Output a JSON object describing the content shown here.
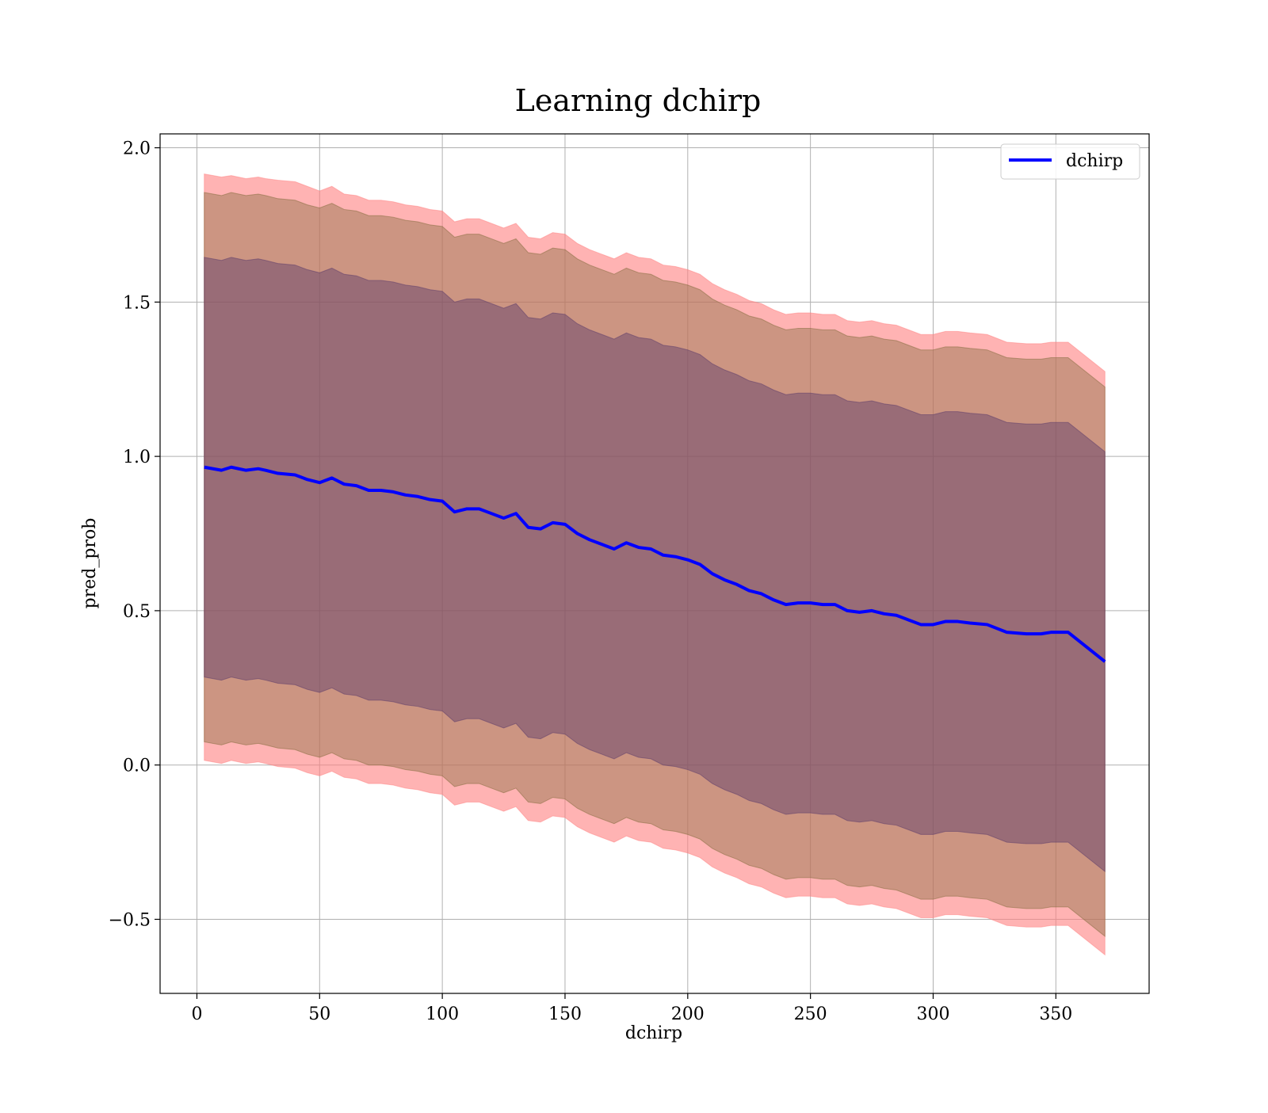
{
  "chart_data": {
    "type": "line",
    "title": "Learning dchirp",
    "xlabel": "dchirp",
    "ylabel": "pred_prob",
    "xlim": [
      -15,
      388
    ],
    "ylim": [
      -0.74,
      2.045
    ],
    "x_ticks": [
      0,
      50,
      100,
      150,
      200,
      250,
      300,
      350
    ],
    "x_tick_labels": [
      "0",
      "50",
      "100",
      "150",
      "200",
      "250",
      "300",
      "350"
    ],
    "y_ticks": [
      -0.5,
      0.0,
      0.5,
      1.0,
      1.5,
      2.0
    ],
    "y_tick_labels": [
      "−0.5",
      "0.0",
      "0.5",
      "1.0",
      "1.5",
      "2.0"
    ],
    "grid": true,
    "legend_position": "top-right",
    "series": [
      {
        "name": "dchirp",
        "color": "#0000ff",
        "x": [
          3,
          10,
          14,
          20,
          25,
          28,
          33,
          40,
          45,
          50,
          55,
          60,
          65,
          70,
          75,
          80,
          85,
          90,
          95,
          100,
          105,
          110,
          115,
          120,
          125,
          130,
          135,
          140,
          145,
          150,
          155,
          160,
          165,
          170,
          175,
          180,
          185,
          190,
          195,
          200,
          205,
          210,
          215,
          220,
          225,
          230,
          235,
          240,
          245,
          250,
          255,
          260,
          265,
          270,
          275,
          280,
          285,
          290,
          295,
          300,
          305,
          310,
          315,
          322,
          330,
          338,
          344,
          348,
          355,
          370
        ],
        "y": [
          0.965,
          0.955,
          0.965,
          0.955,
          0.96,
          0.955,
          0.945,
          0.94,
          0.925,
          0.915,
          0.93,
          0.91,
          0.905,
          0.89,
          0.89,
          0.885,
          0.875,
          0.87,
          0.86,
          0.855,
          0.82,
          0.83,
          0.83,
          0.815,
          0.8,
          0.815,
          0.77,
          0.765,
          0.785,
          0.78,
          0.75,
          0.73,
          0.715,
          0.7,
          0.72,
          0.705,
          0.7,
          0.68,
          0.675,
          0.665,
          0.65,
          0.62,
          0.6,
          0.585,
          0.565,
          0.555,
          0.535,
          0.52,
          0.525,
          0.525,
          0.52,
          0.52,
          0.5,
          0.495,
          0.5,
          0.49,
          0.485,
          0.47,
          0.455,
          0.455,
          0.465,
          0.465,
          0.46,
          0.455,
          0.43,
          0.425,
          0.425,
          0.43,
          0.43,
          0.335
        ]
      }
    ],
    "bands": [
      {
        "color": "#ff8080",
        "alpha": 0.6,
        "upper": [
          1.915,
          1.905,
          1.91,
          1.9,
          1.905,
          1.9,
          1.895,
          1.89,
          1.875,
          1.86,
          1.875,
          1.85,
          1.845,
          1.83,
          1.83,
          1.825,
          1.815,
          1.81,
          1.8,
          1.795,
          1.76,
          1.77,
          1.77,
          1.755,
          1.74,
          1.755,
          1.71,
          1.705,
          1.725,
          1.72,
          1.69,
          1.67,
          1.655,
          1.64,
          1.66,
          1.645,
          1.64,
          1.62,
          1.615,
          1.605,
          1.59,
          1.56,
          1.54,
          1.525,
          1.505,
          1.495,
          1.475,
          1.46,
          1.465,
          1.465,
          1.46,
          1.46,
          1.44,
          1.435,
          1.44,
          1.43,
          1.425,
          1.41,
          1.395,
          1.395,
          1.405,
          1.405,
          1.4,
          1.395,
          1.37,
          1.365,
          1.365,
          1.37,
          1.37,
          1.275
        ],
        "lower": [
          0.015,
          0.005,
          0.015,
          0.005,
          0.01,
          0.005,
          -0.005,
          -0.01,
          -0.025,
          -0.035,
          -0.02,
          -0.04,
          -0.045,
          -0.06,
          -0.06,
          -0.065,
          -0.075,
          -0.08,
          -0.09,
          -0.095,
          -0.13,
          -0.12,
          -0.12,
          -0.135,
          -0.15,
          -0.135,
          -0.18,
          -0.185,
          -0.165,
          -0.17,
          -0.2,
          -0.22,
          -0.235,
          -0.25,
          -0.23,
          -0.245,
          -0.25,
          -0.27,
          -0.275,
          -0.285,
          -0.3,
          -0.33,
          -0.35,
          -0.365,
          -0.385,
          -0.395,
          -0.415,
          -0.43,
          -0.425,
          -0.425,
          -0.43,
          -0.43,
          -0.45,
          -0.455,
          -0.45,
          -0.46,
          -0.465,
          -0.48,
          -0.495,
          -0.495,
          -0.485,
          -0.485,
          -0.49,
          -0.495,
          -0.52,
          -0.525,
          -0.525,
          -0.52,
          -0.52,
          -0.615
        ]
      },
      {
        "color": "#7f6a3a",
        "alpha": 0.4,
        "upper": [
          1.855,
          1.845,
          1.855,
          1.845,
          1.85,
          1.845,
          1.835,
          1.83,
          1.815,
          1.805,
          1.82,
          1.8,
          1.795,
          1.78,
          1.78,
          1.775,
          1.765,
          1.76,
          1.75,
          1.745,
          1.71,
          1.72,
          1.72,
          1.705,
          1.69,
          1.705,
          1.66,
          1.655,
          1.675,
          1.67,
          1.64,
          1.62,
          1.605,
          1.59,
          1.61,
          1.595,
          1.59,
          1.57,
          1.565,
          1.555,
          1.54,
          1.51,
          1.49,
          1.475,
          1.455,
          1.445,
          1.425,
          1.41,
          1.415,
          1.415,
          1.41,
          1.41,
          1.39,
          1.385,
          1.39,
          1.38,
          1.375,
          1.36,
          1.345,
          1.345,
          1.355,
          1.355,
          1.35,
          1.345,
          1.32,
          1.315,
          1.315,
          1.32,
          1.32,
          1.225
        ],
        "lower": [
          0.075,
          0.065,
          0.075,
          0.065,
          0.07,
          0.065,
          0.055,
          0.05,
          0.035,
          0.025,
          0.04,
          0.02,
          0.015,
          0.0,
          0.0,
          -0.005,
          -0.015,
          -0.02,
          -0.03,
          -0.035,
          -0.07,
          -0.06,
          -0.06,
          -0.075,
          -0.09,
          -0.075,
          -0.12,
          -0.125,
          -0.105,
          -0.11,
          -0.14,
          -0.16,
          -0.175,
          -0.19,
          -0.17,
          -0.185,
          -0.19,
          -0.21,
          -0.215,
          -0.225,
          -0.24,
          -0.27,
          -0.29,
          -0.305,
          -0.325,
          -0.335,
          -0.355,
          -0.37,
          -0.365,
          -0.365,
          -0.37,
          -0.37,
          -0.39,
          -0.395,
          -0.39,
          -0.4,
          -0.405,
          -0.42,
          -0.435,
          -0.435,
          -0.425,
          -0.425,
          -0.43,
          -0.435,
          -0.46,
          -0.465,
          -0.465,
          -0.46,
          -0.46,
          -0.555
        ]
      },
      {
        "color": "#5a3a6a",
        "alpha": 0.45,
        "upper": [
          1.645,
          1.635,
          1.645,
          1.635,
          1.64,
          1.635,
          1.625,
          1.62,
          1.605,
          1.595,
          1.61,
          1.59,
          1.585,
          1.57,
          1.57,
          1.565,
          1.555,
          1.55,
          1.54,
          1.535,
          1.5,
          1.51,
          1.51,
          1.495,
          1.48,
          1.495,
          1.45,
          1.445,
          1.465,
          1.46,
          1.43,
          1.41,
          1.395,
          1.38,
          1.4,
          1.385,
          1.38,
          1.36,
          1.355,
          1.345,
          1.33,
          1.3,
          1.28,
          1.265,
          1.245,
          1.235,
          1.215,
          1.2,
          1.205,
          1.205,
          1.2,
          1.2,
          1.18,
          1.175,
          1.18,
          1.17,
          1.165,
          1.15,
          1.135,
          1.135,
          1.145,
          1.145,
          1.14,
          1.135,
          1.11,
          1.105,
          1.105,
          1.11,
          1.11,
          1.015
        ],
        "lower": [
          0.285,
          0.275,
          0.285,
          0.275,
          0.28,
          0.275,
          0.265,
          0.26,
          0.245,
          0.235,
          0.25,
          0.23,
          0.225,
          0.21,
          0.21,
          0.205,
          0.195,
          0.19,
          0.18,
          0.175,
          0.14,
          0.15,
          0.15,
          0.135,
          0.12,
          0.135,
          0.09,
          0.085,
          0.105,
          0.1,
          0.07,
          0.05,
          0.035,
          0.02,
          0.04,
          0.025,
          0.02,
          0.0,
          -0.005,
          -0.015,
          -0.03,
          -0.06,
          -0.08,
          -0.095,
          -0.115,
          -0.125,
          -0.145,
          -0.16,
          -0.155,
          -0.155,
          -0.16,
          -0.16,
          -0.18,
          -0.185,
          -0.18,
          -0.19,
          -0.195,
          -0.21,
          -0.225,
          -0.225,
          -0.215,
          -0.215,
          -0.22,
          -0.225,
          -0.25,
          -0.255,
          -0.255,
          -0.25,
          -0.25,
          -0.345
        ]
      }
    ]
  }
}
